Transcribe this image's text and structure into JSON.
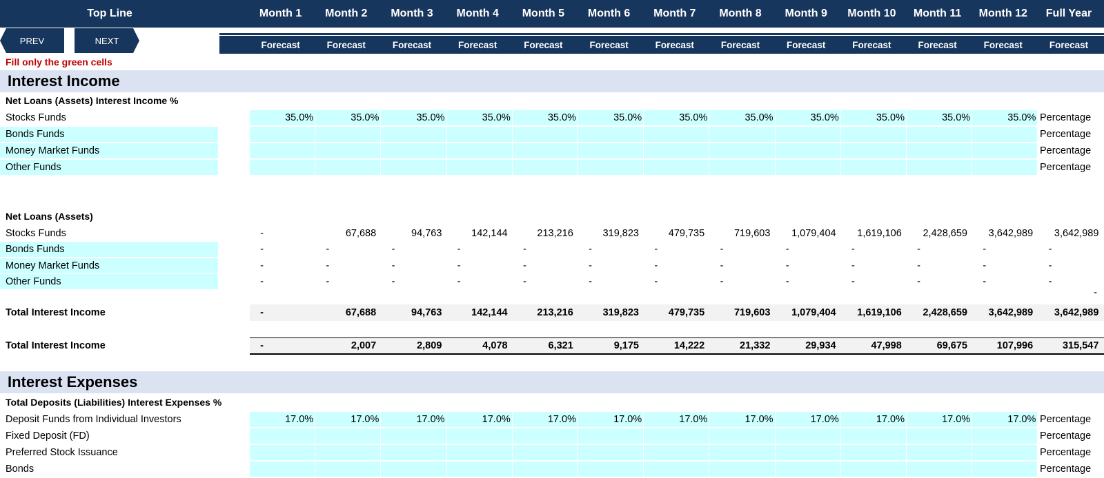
{
  "header": {
    "title": "Top Line",
    "months": [
      "Month 1",
      "Month 2",
      "Month 3",
      "Month 4",
      "Month 5",
      "Month 6",
      "Month 7",
      "Month 8",
      "Month 9",
      "Month 10",
      "Month 11",
      "Month 12",
      "Full Year"
    ],
    "sub": [
      "Forecast",
      "Forecast",
      "Forecast",
      "Forecast",
      "Forecast",
      "Forecast",
      "Forecast",
      "Forecast",
      "Forecast",
      "Forecast",
      "Forecast",
      "Forecast",
      "Forecast"
    ]
  },
  "nav": {
    "prev": "PREV",
    "next": "NEXT"
  },
  "note": "Fill only the green cells",
  "income": {
    "title": "Interest Income",
    "rates_header": "Net Loans (Assets) Interest Income %",
    "rate_rows": [
      {
        "label": "Stocks Funds",
        "values": [
          "35.0%",
          "35.0%",
          "35.0%",
          "35.0%",
          "35.0%",
          "35.0%",
          "35.0%",
          "35.0%",
          "35.0%",
          "35.0%",
          "35.0%",
          "35.0%"
        ],
        "unit": "Percentage"
      },
      {
        "label": "Bonds Funds",
        "values": [
          "",
          "",
          "",
          "",
          "",
          "",
          "",
          "",
          "",
          "",
          "",
          ""
        ],
        "unit": "Percentage"
      },
      {
        "label": "Money Market Funds",
        "values": [
          "",
          "",
          "",
          "",
          "",
          "",
          "",
          "",
          "",
          "",
          "",
          ""
        ],
        "unit": "Percentage"
      },
      {
        "label": "Other Funds",
        "values": [
          "",
          "",
          "",
          "",
          "",
          "",
          "",
          "",
          "",
          "",
          "",
          ""
        ],
        "unit": "Percentage"
      }
    ],
    "loans_header": "Net Loans (Assets)",
    "loan_rows": [
      {
        "label": "Stocks Funds",
        "values": [
          "-",
          "67,688",
          "94,763",
          "142,144",
          "213,216",
          "319,823",
          "479,735",
          "719,603",
          "1,079,404",
          "1,619,106",
          "2,428,659",
          "3,642,989",
          "3,642,989"
        ]
      },
      {
        "label": "Bonds Funds",
        "values": [
          "-",
          "-",
          "-",
          "-",
          "-",
          "-",
          "-",
          "-",
          "-",
          "-",
          "-",
          "-",
          "-"
        ]
      },
      {
        "label": "Money Market Funds",
        "values": [
          "-",
          "-",
          "-",
          "-",
          "-",
          "-",
          "-",
          "-",
          "-",
          "-",
          "-",
          "-",
          "-"
        ]
      },
      {
        "label": "Other Funds",
        "values": [
          "-",
          "-",
          "-",
          "-",
          "-",
          "-",
          "-",
          "-",
          "-",
          "-",
          "-",
          "-",
          "-"
        ]
      }
    ],
    "extra_dash": "-",
    "total1": {
      "label": "Total Interest Income",
      "values": [
        "-",
        "67,688",
        "94,763",
        "142,144",
        "213,216",
        "319,823",
        "479,735",
        "719,603",
        "1,079,404",
        "1,619,106",
        "2,428,659",
        "3,642,989",
        "3,642,989"
      ]
    },
    "total2": {
      "label": "Total Interest Income",
      "values": [
        "-",
        "2,007",
        "2,809",
        "4,078",
        "6,321",
        "9,175",
        "14,222",
        "21,332",
        "29,934",
        "47,998",
        "69,675",
        "107,996",
        "315,547"
      ]
    }
  },
  "expenses": {
    "title": "Interest Expenses",
    "rates_header": "Total Deposits (Liabilities) Interest Expenses %",
    "rate_rows": [
      {
        "label": "Deposit Funds from Individual Investors",
        "values": [
          "17.0%",
          "17.0%",
          "17.0%",
          "17.0%",
          "17.0%",
          "17.0%",
          "17.0%",
          "17.0%",
          "17.0%",
          "17.0%",
          "17.0%",
          "17.0%"
        ],
        "unit": "Percentage"
      },
      {
        "label": "Fixed Deposit (FD)",
        "values": [
          "",
          "",
          "",
          "",
          "",
          "",
          "",
          "",
          "",
          "",
          "",
          ""
        ],
        "unit": "Percentage"
      },
      {
        "label": "Preferred Stock Issuance",
        "values": [
          "",
          "",
          "",
          "",
          "",
          "",
          "",
          "",
          "",
          "",
          "",
          ""
        ],
        "unit": "Percentage"
      },
      {
        "label": "Bonds",
        "values": [
          "",
          "",
          "",
          "",
          "",
          "",
          "",
          "",
          "",
          "",
          "",
          ""
        ],
        "unit": "Percentage"
      }
    ]
  }
}
